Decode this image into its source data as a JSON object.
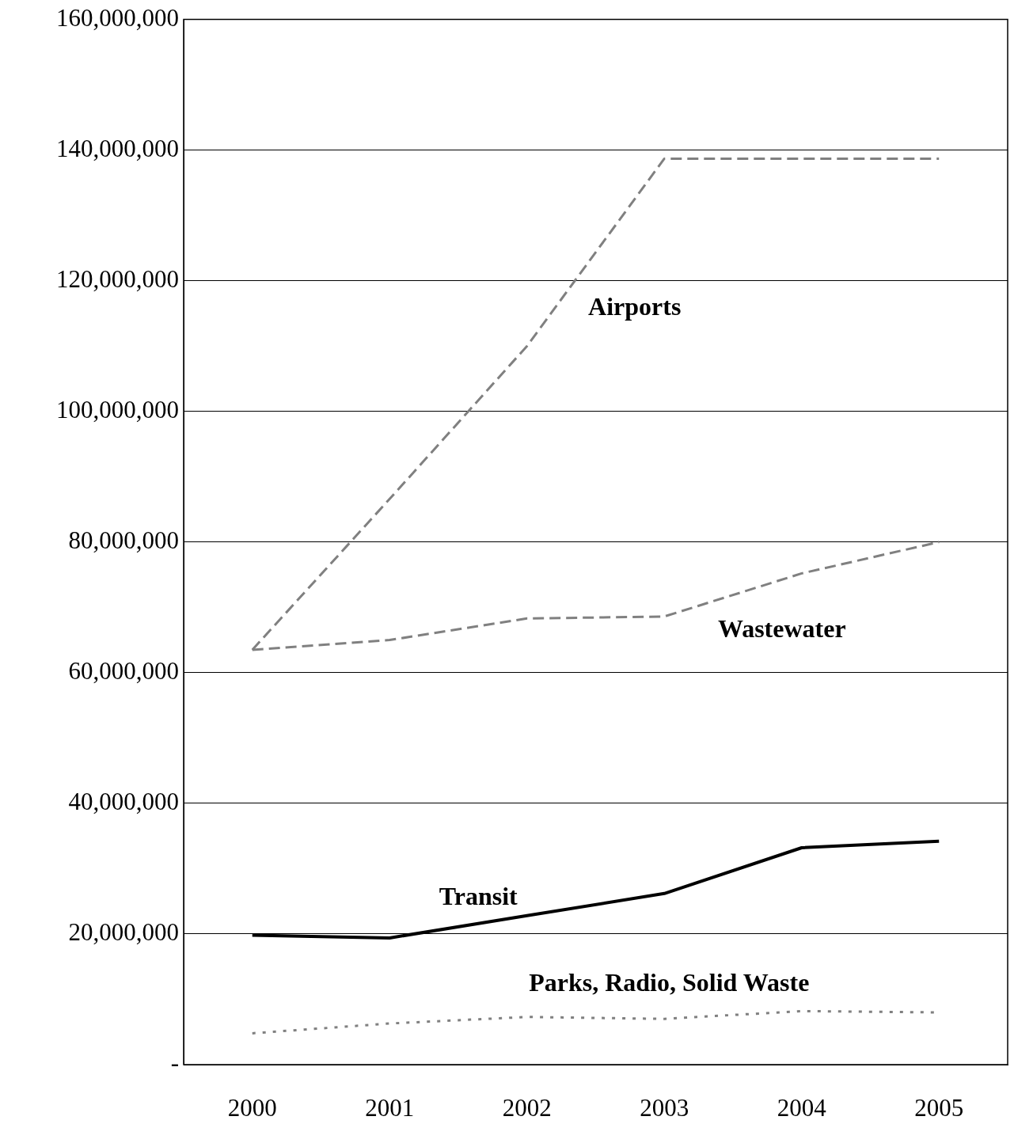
{
  "chart_data": {
    "type": "line",
    "categories": [
      "2000",
      "2001",
      "2002",
      "2003",
      "2004",
      "2005"
    ],
    "series": [
      {
        "name": "Airports",
        "color": "#808080",
        "line_style": "dashed",
        "values": [
          63500000,
          86600000,
          110000000,
          138700000,
          138700000,
          138700000
        ]
      },
      {
        "name": "Wastewater",
        "color": "#808080",
        "line_style": "dashed",
        "values": [
          63500000,
          65000000,
          68300000,
          68600000,
          75200000,
          80000000
        ]
      },
      {
        "name": "Transit",
        "color": "#000000",
        "line_style": "solid",
        "values": [
          19800000,
          19400000,
          22800000,
          26200000,
          33200000,
          34200000
        ]
      },
      {
        "name": "Parks, Radio, Solid Waste",
        "color": "#808080",
        "line_style": "dotted",
        "values": [
          4800000,
          6300000,
          7300000,
          7000000,
          8200000,
          8000000
        ]
      }
    ],
    "ylim": [
      0,
      160000000
    ],
    "yticks": [
      {
        "value": 0,
        "label": "-"
      },
      {
        "value": 20000000,
        "label": "20,000,000"
      },
      {
        "value": 40000000,
        "label": "40,000,000"
      },
      {
        "value": 60000000,
        "label": "60,000,000"
      },
      {
        "value": 80000000,
        "label": "80,000,000"
      },
      {
        "value": 100000000,
        "label": "100,000,000"
      },
      {
        "value": 120000000,
        "label": "120,000,000"
      },
      {
        "value": 140000000,
        "label": "140,000,000"
      },
      {
        "value": 160000000,
        "label": "160,000,000"
      }
    ],
    "grid": "y",
    "legend": false,
    "marker": "none"
  }
}
